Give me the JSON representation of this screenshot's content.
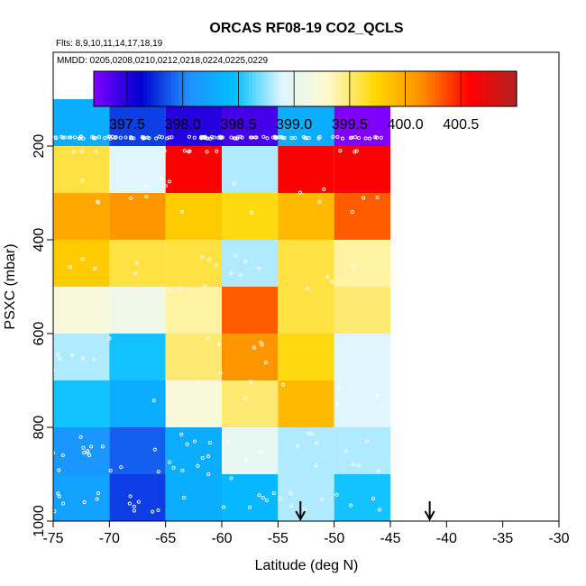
{
  "chart_data": {
    "type": "heatmap",
    "title": "ORCAS RF08-19 CO2_QCLS",
    "subtitle": "Flts: 8,9,10,11,14,17,18,19",
    "annotation": "MMDD: 0205,0208,0210,0212,0218,0224,0225,0229",
    "xlabel": "Latitude (deg N)",
    "ylabel": "PSXC (mbar)",
    "xlim": [
      -75,
      -30
    ],
    "ylim": [
      1000,
      0
    ],
    "x_ticks": [
      -75,
      -70,
      -65,
      -60,
      -55,
      -50,
      -45,
      -40,
      -35,
      -30
    ],
    "y_ticks": [
      200,
      400,
      600,
      800,
      1000
    ],
    "colorbar": {
      "range": [
        397.2,
        401.0
      ],
      "ticks": [
        397.5,
        398.0,
        398.5,
        399.0,
        399.5,
        400.0,
        400.5
      ],
      "tick_labels": [
        "397.5",
        "398.0",
        "398.5",
        "399.0",
        "399.5",
        "400.0",
        "400.5"
      ]
    },
    "lat_bins": [
      [
        -75,
        -70
      ],
      [
        -70,
        -65
      ],
      [
        -65,
        -60
      ],
      [
        -60,
        -55
      ],
      [
        -55,
        -50
      ],
      [
        -50,
        -45
      ]
    ],
    "pressure_bins": [
      [
        100,
        200
      ],
      [
        200,
        300
      ],
      [
        300,
        400
      ],
      [
        400,
        500
      ],
      [
        500,
        600
      ],
      [
        600,
        700
      ],
      [
        700,
        800
      ],
      [
        800,
        900
      ],
      [
        900,
        1000
      ]
    ],
    "values": [
      [
        398.3,
        397.8,
        397.5,
        397.4,
        398.3,
        397.2
      ],
      [
        399.6,
        398.9,
        400.6,
        398.8,
        400.6,
        400.6
      ],
      [
        400.0,
        400.1,
        399.8,
        399.7,
        399.9,
        400.3
      ],
      [
        399.8,
        399.6,
        399.6,
        398.8,
        399.6,
        399.4
      ],
      [
        399.2,
        399.1,
        399.4,
        400.3,
        399.6,
        399.5
      ],
      [
        398.8,
        398.5,
        399.5,
        400.1,
        399.7,
        398.9
      ],
      [
        398.5,
        398.3,
        399.2,
        399.5,
        399.9,
        398.9
      ],
      [
        398.1,
        397.9,
        398.3,
        399.0,
        398.8,
        398.8
      ],
      [
        398.2,
        397.8,
        398.3,
        398.4,
        398.8,
        398.5
      ]
    ],
    "arrow_markers_lat": [
      -53,
      -41.5
    ],
    "colors": {
      "scale": [
        "#7f00ff",
        "#0000d0",
        "#1e90ff",
        "#00bfff",
        "#dff6ff",
        "#fffacd",
        "#ffd700",
        "#ff8c00",
        "#ff0000",
        "#b22222"
      ],
      "point_color": "#ffffff"
    }
  }
}
